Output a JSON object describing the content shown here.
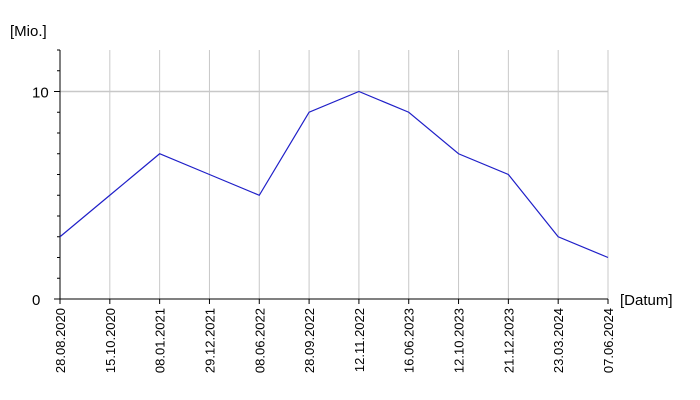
{
  "chart_data": {
    "type": "line",
    "y_label": "[Mio.]",
    "x_label": "[Datum]",
    "categories": [
      "28.08.2020",
      "15.10.2020",
      "08.01.2021",
      "29.12.2021",
      "08.06.2022",
      "28.09.2022",
      "12.11.2022",
      "16.06.2023",
      "12.10.2023",
      "21.12.2023",
      "23.03.2024",
      "07.06.2024"
    ],
    "values": [
      3,
      5,
      7,
      6,
      5,
      9,
      10,
      9,
      7,
      6,
      3,
      2
    ],
    "color": "#1f1fc8",
    "ylim": [
      0,
      12
    ],
    "yticks": [
      0,
      10
    ],
    "minor_yticks": [
      1,
      2,
      3,
      4,
      5,
      6,
      7,
      8,
      9,
      11,
      12
    ],
    "grid": true
  }
}
